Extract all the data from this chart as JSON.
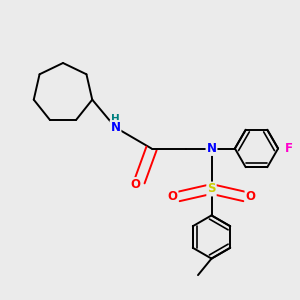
{
  "background_color": "#ebebeb",
  "figsize": [
    3.0,
    3.0
  ],
  "dpi": 100,
  "bond_color": "#000000",
  "bond_width": 1.4,
  "atom_colors": {
    "N": "#0000ff",
    "O": "#ff0000",
    "S": "#cccc00",
    "F": "#ff00cc",
    "H_on_N": "#008080",
    "C": "#000000"
  },
  "font_size": 8.5,
  "font_size_small": 7.5,
  "xlim": [
    0,
    10
  ],
  "ylim": [
    0,
    10
  ]
}
